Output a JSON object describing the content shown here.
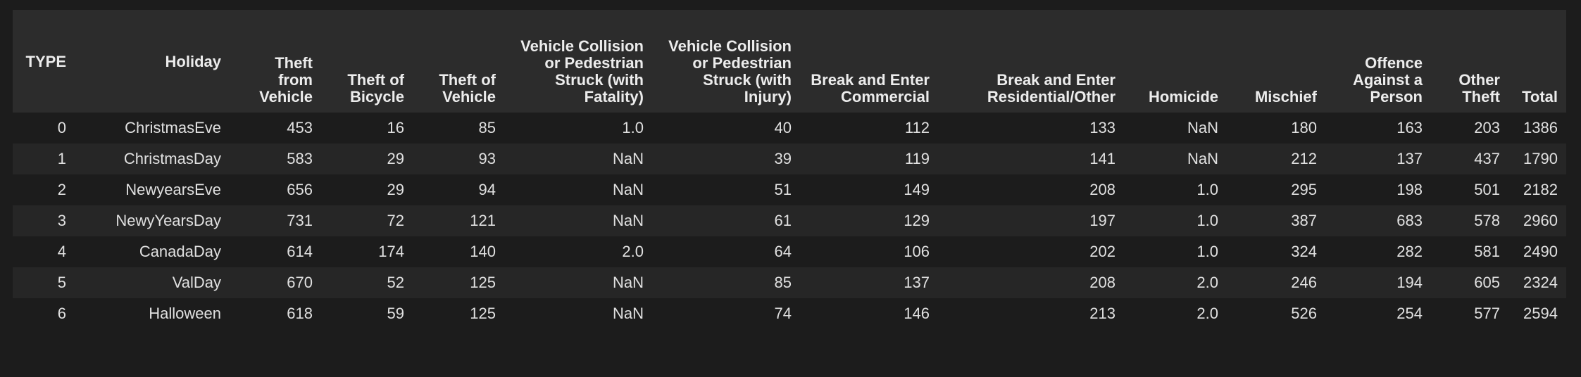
{
  "table": {
    "columns": [
      "TYPE",
      "Holiday",
      "Theft from Vehicle",
      "Theft of Bicycle",
      "Theft of Vehicle",
      "Vehicle Collision or Pedestrian Struck (with Fatality)",
      "Vehicle Collision or Pedestrian Struck (with Injury)",
      "Break and Enter Commercial",
      "Break and Enter Residential/Other",
      "Homicide",
      "Mischief",
      "Offence Against a Person",
      "Other Theft",
      "Total"
    ],
    "rows": [
      [
        "0",
        "ChristmasEve",
        "453",
        "16",
        "85",
        "1.0",
        "40",
        "112",
        "133",
        "NaN",
        "180",
        "163",
        "203",
        "1386"
      ],
      [
        "1",
        "ChristmasDay",
        "583",
        "29",
        "93",
        "NaN",
        "39",
        "119",
        "141",
        "NaN",
        "212",
        "137",
        "437",
        "1790"
      ],
      [
        "2",
        "NewyearsEve",
        "656",
        "29",
        "94",
        "NaN",
        "51",
        "149",
        "208",
        "1.0",
        "295",
        "198",
        "501",
        "2182"
      ],
      [
        "3",
        "NewyYearsDay",
        "731",
        "72",
        "121",
        "NaN",
        "61",
        "129",
        "197",
        "1.0",
        "387",
        "683",
        "578",
        "2960"
      ],
      [
        "4",
        "CanadaDay",
        "614",
        "174",
        "140",
        "2.0",
        "64",
        "106",
        "202",
        "1.0",
        "324",
        "282",
        "581",
        "2490"
      ],
      [
        "5",
        "ValDay",
        "670",
        "52",
        "125",
        "NaN",
        "85",
        "137",
        "208",
        "2.0",
        "246",
        "194",
        "605",
        "2324"
      ],
      [
        "6",
        "Halloween",
        "618",
        "59",
        "125",
        "NaN",
        "74",
        "146",
        "213",
        "2.0",
        "526",
        "254",
        "577",
        "2594"
      ]
    ]
  },
  "colors": {
    "background": "#1c1c1c",
    "header_background": "#2c2c2c",
    "alt_row_background": "#262626",
    "text": "#e0e0e0"
  }
}
